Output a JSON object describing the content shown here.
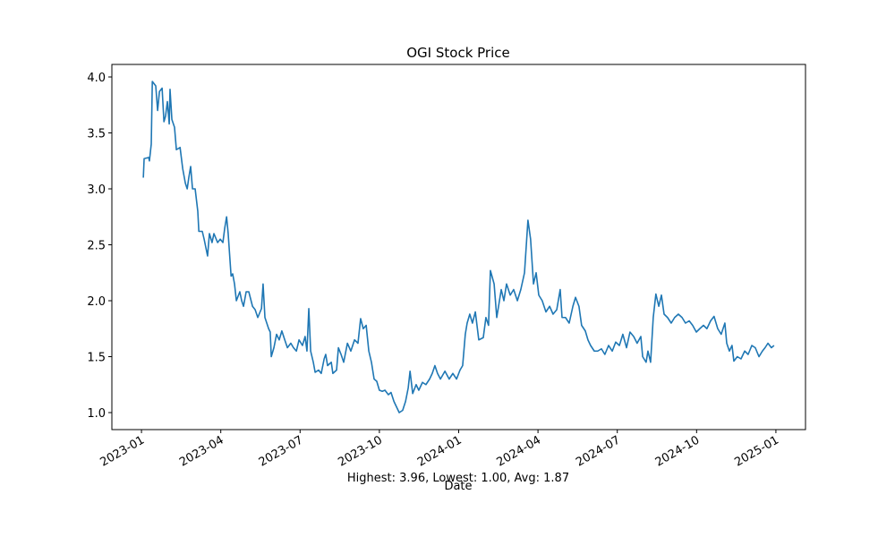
{
  "chart_data": {
    "type": "line",
    "title": "OGI Stock Price",
    "xlabel": "Date",
    "annotation": "Highest: 3.96, Lowest: 1.00, Avg: 1.87",
    "xlim": [
      -1.12,
      25.12
    ],
    "ylim": [
      0.848,
      4.112
    ],
    "xticks": [
      {
        "value": 0,
        "label": "2023-01"
      },
      {
        "value": 3,
        "label": "2023-04"
      },
      {
        "value": 6,
        "label": "2023-07"
      },
      {
        "value": 9,
        "label": "2023-10"
      },
      {
        "value": 12,
        "label": "2024-01"
      },
      {
        "value": 15,
        "label": "2024-04"
      },
      {
        "value": 18,
        "label": "2024-07"
      },
      {
        "value": 21,
        "label": "2024-10"
      },
      {
        "value": 24,
        "label": "2025-01"
      }
    ],
    "yticks": [
      {
        "value": 1,
        "label": "1.0"
      },
      1.5,
      {
        "value": 2,
        "label": "2.0"
      },
      2.5,
      {
        "value": 3,
        "label": "3.0"
      },
      3.5,
      {
        "value": 4,
        "label": "4.0"
      }
    ],
    "x": [
      0.07,
      0.1,
      0.27,
      0.3,
      0.37,
      0.41,
      0.54,
      0.61,
      0.68,
      0.78,
      0.85,
      0.91,
      0.98,
      1.05,
      1.08,
      1.15,
      1.25,
      1.32,
      1.46,
      1.56,
      1.66,
      1.73,
      1.79,
      1.86,
      1.93,
      2.03,
      2.13,
      2.17,
      2.3,
      2.37,
      2.5,
      2.57,
      2.67,
      2.74,
      2.88,
      2.98,
      3.08,
      3.15,
      3.22,
      3.28,
      3.39,
      3.45,
      3.52,
      3.59,
      3.72,
      3.79,
      3.86,
      3.96,
      4.06,
      4.2,
      4.3,
      4.4,
      4.54,
      4.6,
      4.67,
      4.81,
      4.87,
      4.91,
      5.01,
      5.11,
      5.21,
      5.31,
      5.42,
      5.52,
      5.65,
      5.75,
      5.86,
      5.96,
      6.09,
      6.19,
      6.26,
      6.33,
      6.4,
      6.5,
      6.57,
      6.7,
      6.8,
      6.91,
      6.97,
      7.04,
      7.18,
      7.24,
      7.38,
      7.45,
      7.55,
      7.65,
      7.79,
      7.92,
      8.06,
      8.19,
      8.29,
      8.39,
      8.5,
      8.6,
      8.7,
      8.8,
      8.9,
      9.0,
      9.11,
      9.21,
      9.34,
      9.44,
      9.55,
      9.65,
      9.75,
      9.88,
      9.99,
      10.09,
      10.16,
      10.26,
      10.39,
      10.49,
      10.63,
      10.76,
      10.9,
      11.0,
      11.1,
      11.2,
      11.31,
      11.48,
      11.64,
      11.78,
      11.92,
      12.05,
      12.15,
      12.25,
      12.32,
      12.42,
      12.52,
      12.63,
      12.76,
      12.93,
      13.03,
      13.13,
      13.2,
      13.34,
      13.44,
      13.61,
      13.71,
      13.81,
      13.95,
      14.08,
      14.22,
      14.35,
      14.49,
      14.62,
      14.72,
      14.83,
      14.93,
      15.03,
      15.16,
      15.3,
      15.44,
      15.57,
      15.71,
      15.84,
      15.91,
      16.04,
      16.18,
      16.32,
      16.42,
      16.55,
      16.65,
      16.79,
      16.89,
      16.99,
      17.13,
      17.26,
      17.4,
      17.53,
      17.67,
      17.81,
      17.94,
      18.08,
      18.21,
      18.35,
      18.48,
      18.62,
      18.75,
      18.89,
      18.96,
      19.09,
      19.16,
      19.26,
      19.36,
      19.46,
      19.57,
      19.67,
      19.77,
      19.9,
      20.04,
      20.17,
      20.31,
      20.45,
      20.58,
      20.72,
      20.85,
      20.99,
      21.12,
      21.26,
      21.39,
      21.53,
      21.66,
      21.8,
      21.93,
      22.07,
      22.14,
      22.24,
      22.34,
      22.41,
      22.54,
      22.68,
      22.82,
      22.95,
      23.09,
      23.22,
      23.36,
      23.49,
      23.59,
      23.7,
      23.83,
      23.93
    ],
    "series": [
      {
        "color": "#1f77b4",
        "values": [
          3.1,
          3.27,
          3.28,
          3.25,
          3.4,
          3.96,
          3.92,
          3.7,
          3.87,
          3.9,
          3.6,
          3.65,
          3.78,
          3.58,
          3.89,
          3.62,
          3.55,
          3.35,
          3.37,
          3.18,
          3.05,
          3.0,
          3.1,
          3.2,
          3.0,
          3.0,
          2.8,
          2.62,
          2.62,
          2.55,
          2.4,
          2.6,
          2.52,
          2.6,
          2.52,
          2.55,
          2.52,
          2.65,
          2.75,
          2.6,
          2.22,
          2.24,
          2.15,
          2.0,
          2.08,
          2.0,
          1.95,
          2.08,
          2.08,
          1.95,
          1.92,
          1.85,
          1.93,
          2.15,
          1.85,
          1.75,
          1.72,
          1.5,
          1.58,
          1.7,
          1.65,
          1.73,
          1.65,
          1.58,
          1.62,
          1.58,
          1.55,
          1.65,
          1.6,
          1.68,
          1.55,
          1.93,
          1.55,
          1.45,
          1.36,
          1.38,
          1.35,
          1.48,
          1.52,
          1.42,
          1.45,
          1.35,
          1.38,
          1.58,
          1.52,
          1.45,
          1.62,
          1.55,
          1.65,
          1.62,
          1.84,
          1.75,
          1.78,
          1.55,
          1.45,
          1.3,
          1.28,
          1.2,
          1.19,
          1.2,
          1.16,
          1.18,
          1.1,
          1.05,
          1.0,
          1.02,
          1.1,
          1.22,
          1.37,
          1.17,
          1.25,
          1.2,
          1.27,
          1.25,
          1.3,
          1.35,
          1.42,
          1.35,
          1.3,
          1.37,
          1.3,
          1.35,
          1.3,
          1.38,
          1.42,
          1.7,
          1.8,
          1.88,
          1.8,
          1.9,
          1.65,
          1.67,
          1.85,
          1.78,
          2.27,
          2.15,
          1.85,
          2.1,
          2.0,
          2.15,
          2.05,
          2.1,
          2.0,
          2.1,
          2.25,
          2.72,
          2.55,
          2.15,
          2.25,
          2.05,
          2.0,
          1.9,
          1.95,
          1.88,
          1.92,
          2.1,
          1.85,
          1.85,
          1.8,
          1.95,
          2.03,
          1.95,
          1.78,
          1.73,
          1.65,
          1.6,
          1.55,
          1.55,
          1.57,
          1.52,
          1.6,
          1.55,
          1.63,
          1.6,
          1.7,
          1.58,
          1.72,
          1.68,
          1.62,
          1.68,
          1.5,
          1.45,
          1.55,
          1.45,
          1.85,
          2.06,
          1.95,
          2.05,
          1.88,
          1.85,
          1.8,
          1.85,
          1.88,
          1.85,
          1.8,
          1.82,
          1.78,
          1.72,
          1.75,
          1.78,
          1.75,
          1.82,
          1.86,
          1.75,
          1.7,
          1.8,
          1.62,
          1.55,
          1.6,
          1.46,
          1.5,
          1.48,
          1.55,
          1.52,
          1.6,
          1.58,
          1.5,
          1.55,
          1.58,
          1.62,
          1.58,
          1.6
        ]
      }
    ]
  }
}
